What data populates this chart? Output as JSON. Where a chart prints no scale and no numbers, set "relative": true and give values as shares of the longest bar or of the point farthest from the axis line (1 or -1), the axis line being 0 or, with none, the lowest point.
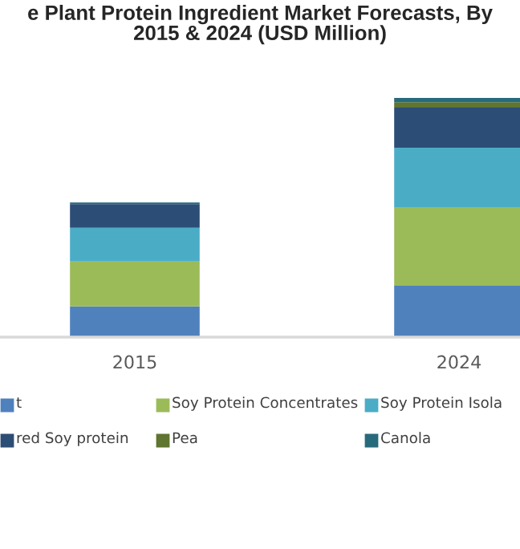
{
  "chart_data": {
    "type": "bar",
    "title": "e Plant Protein Ingredient Market Forecasts, By\n2015 & 2024 (USD Million)",
    "categories": [
      "2015",
      "2024"
    ],
    "stacked": true,
    "relative": true,
    "legend": "bottom",
    "grid": false,
    "series": [
      {
        "name": "t",
        "color": "#4f81bd",
        "values": [
          0.128,
          0.215
        ]
      },
      {
        "name": "Soy Protein Concentrates",
        "color": "#9bbb59",
        "values": [
          0.188,
          0.329
        ]
      },
      {
        "name": "Soy Protein Isola",
        "color": "#4bacc6",
        "values": [
          0.141,
          0.248
        ]
      },
      {
        "name": "red Soy protein",
        "color": "#2c4d75",
        "values": [
          0.099,
          0.168
        ]
      },
      {
        "name": "Pea",
        "color": "#5f7530",
        "values": [
          0.0,
          0.022
        ]
      },
      {
        "name": "Canola",
        "color": "#276a7c",
        "values": [
          0.007,
          0.018
        ]
      }
    ]
  }
}
